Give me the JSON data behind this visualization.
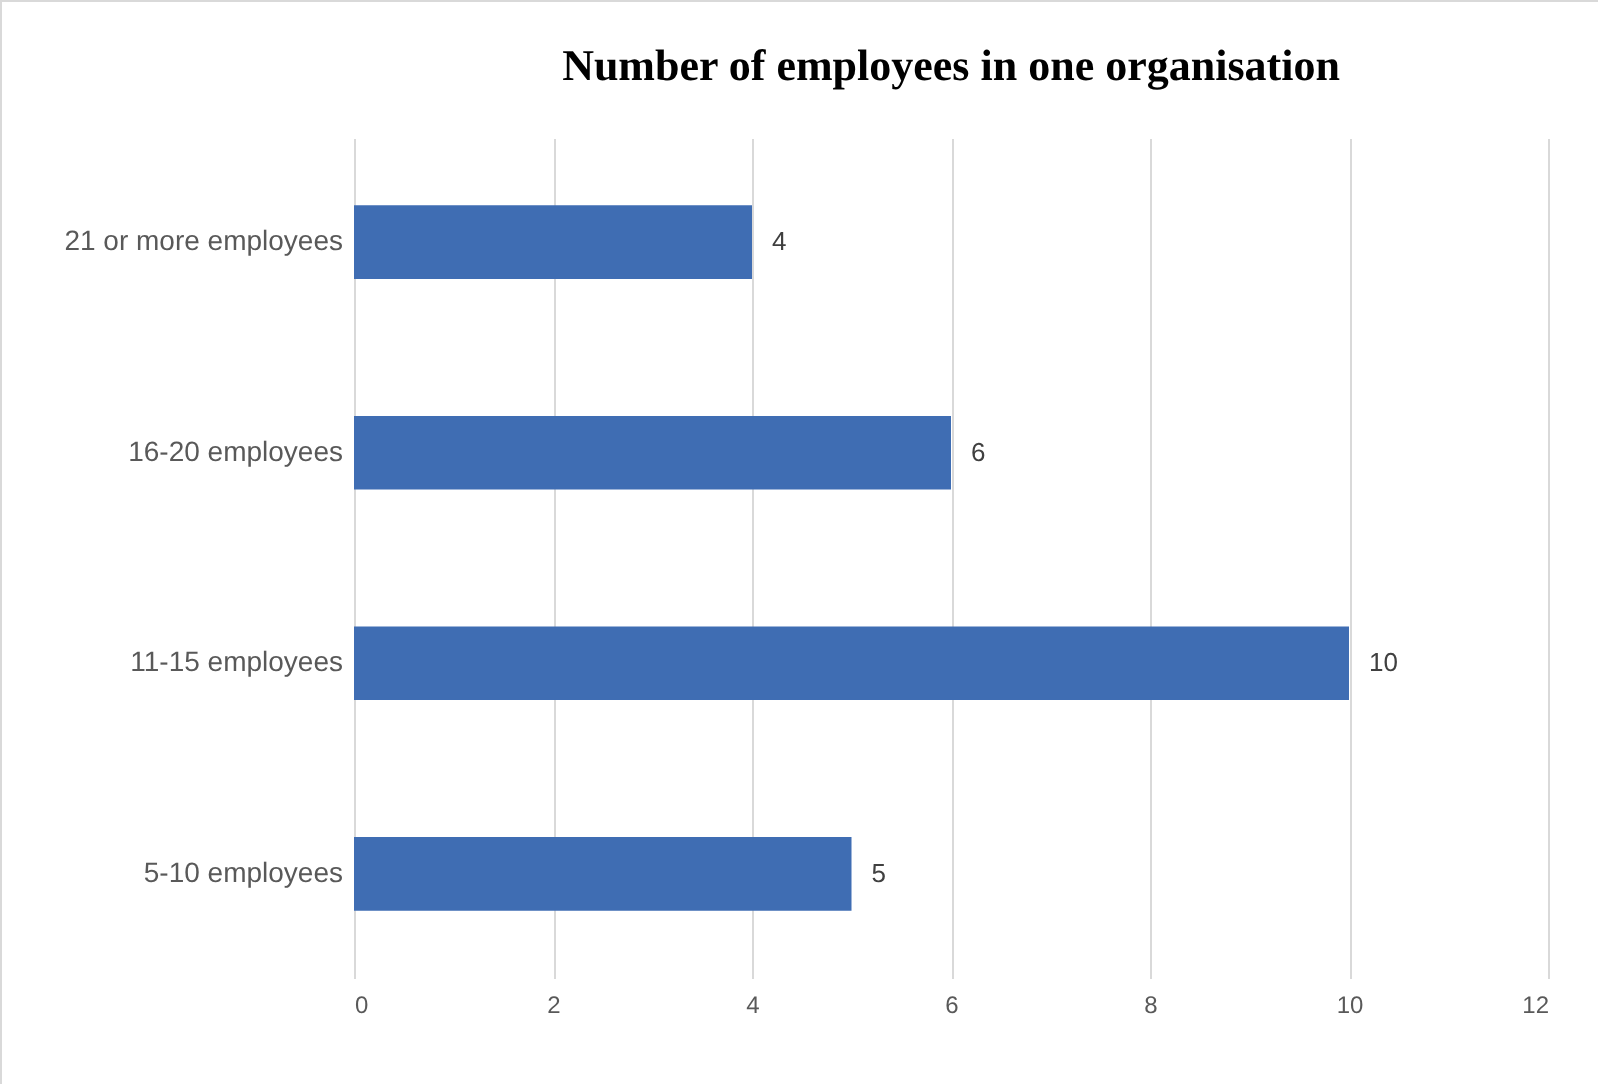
{
  "chart_data": {
    "type": "bar",
    "orientation": "horizontal",
    "title": "Number of employees in one organisation",
    "categories": [
      "21 or more employees",
      "16-20 employees",
      "11-15 employees",
      "5-10 employees"
    ],
    "values": [
      4,
      6,
      10,
      5
    ],
    "color": "#3f6db3",
    "xlim": [
      0,
      12
    ],
    "xticks": [
      0,
      2,
      4,
      6,
      8,
      10,
      12
    ],
    "grid": "x",
    "data_labels": true
  }
}
